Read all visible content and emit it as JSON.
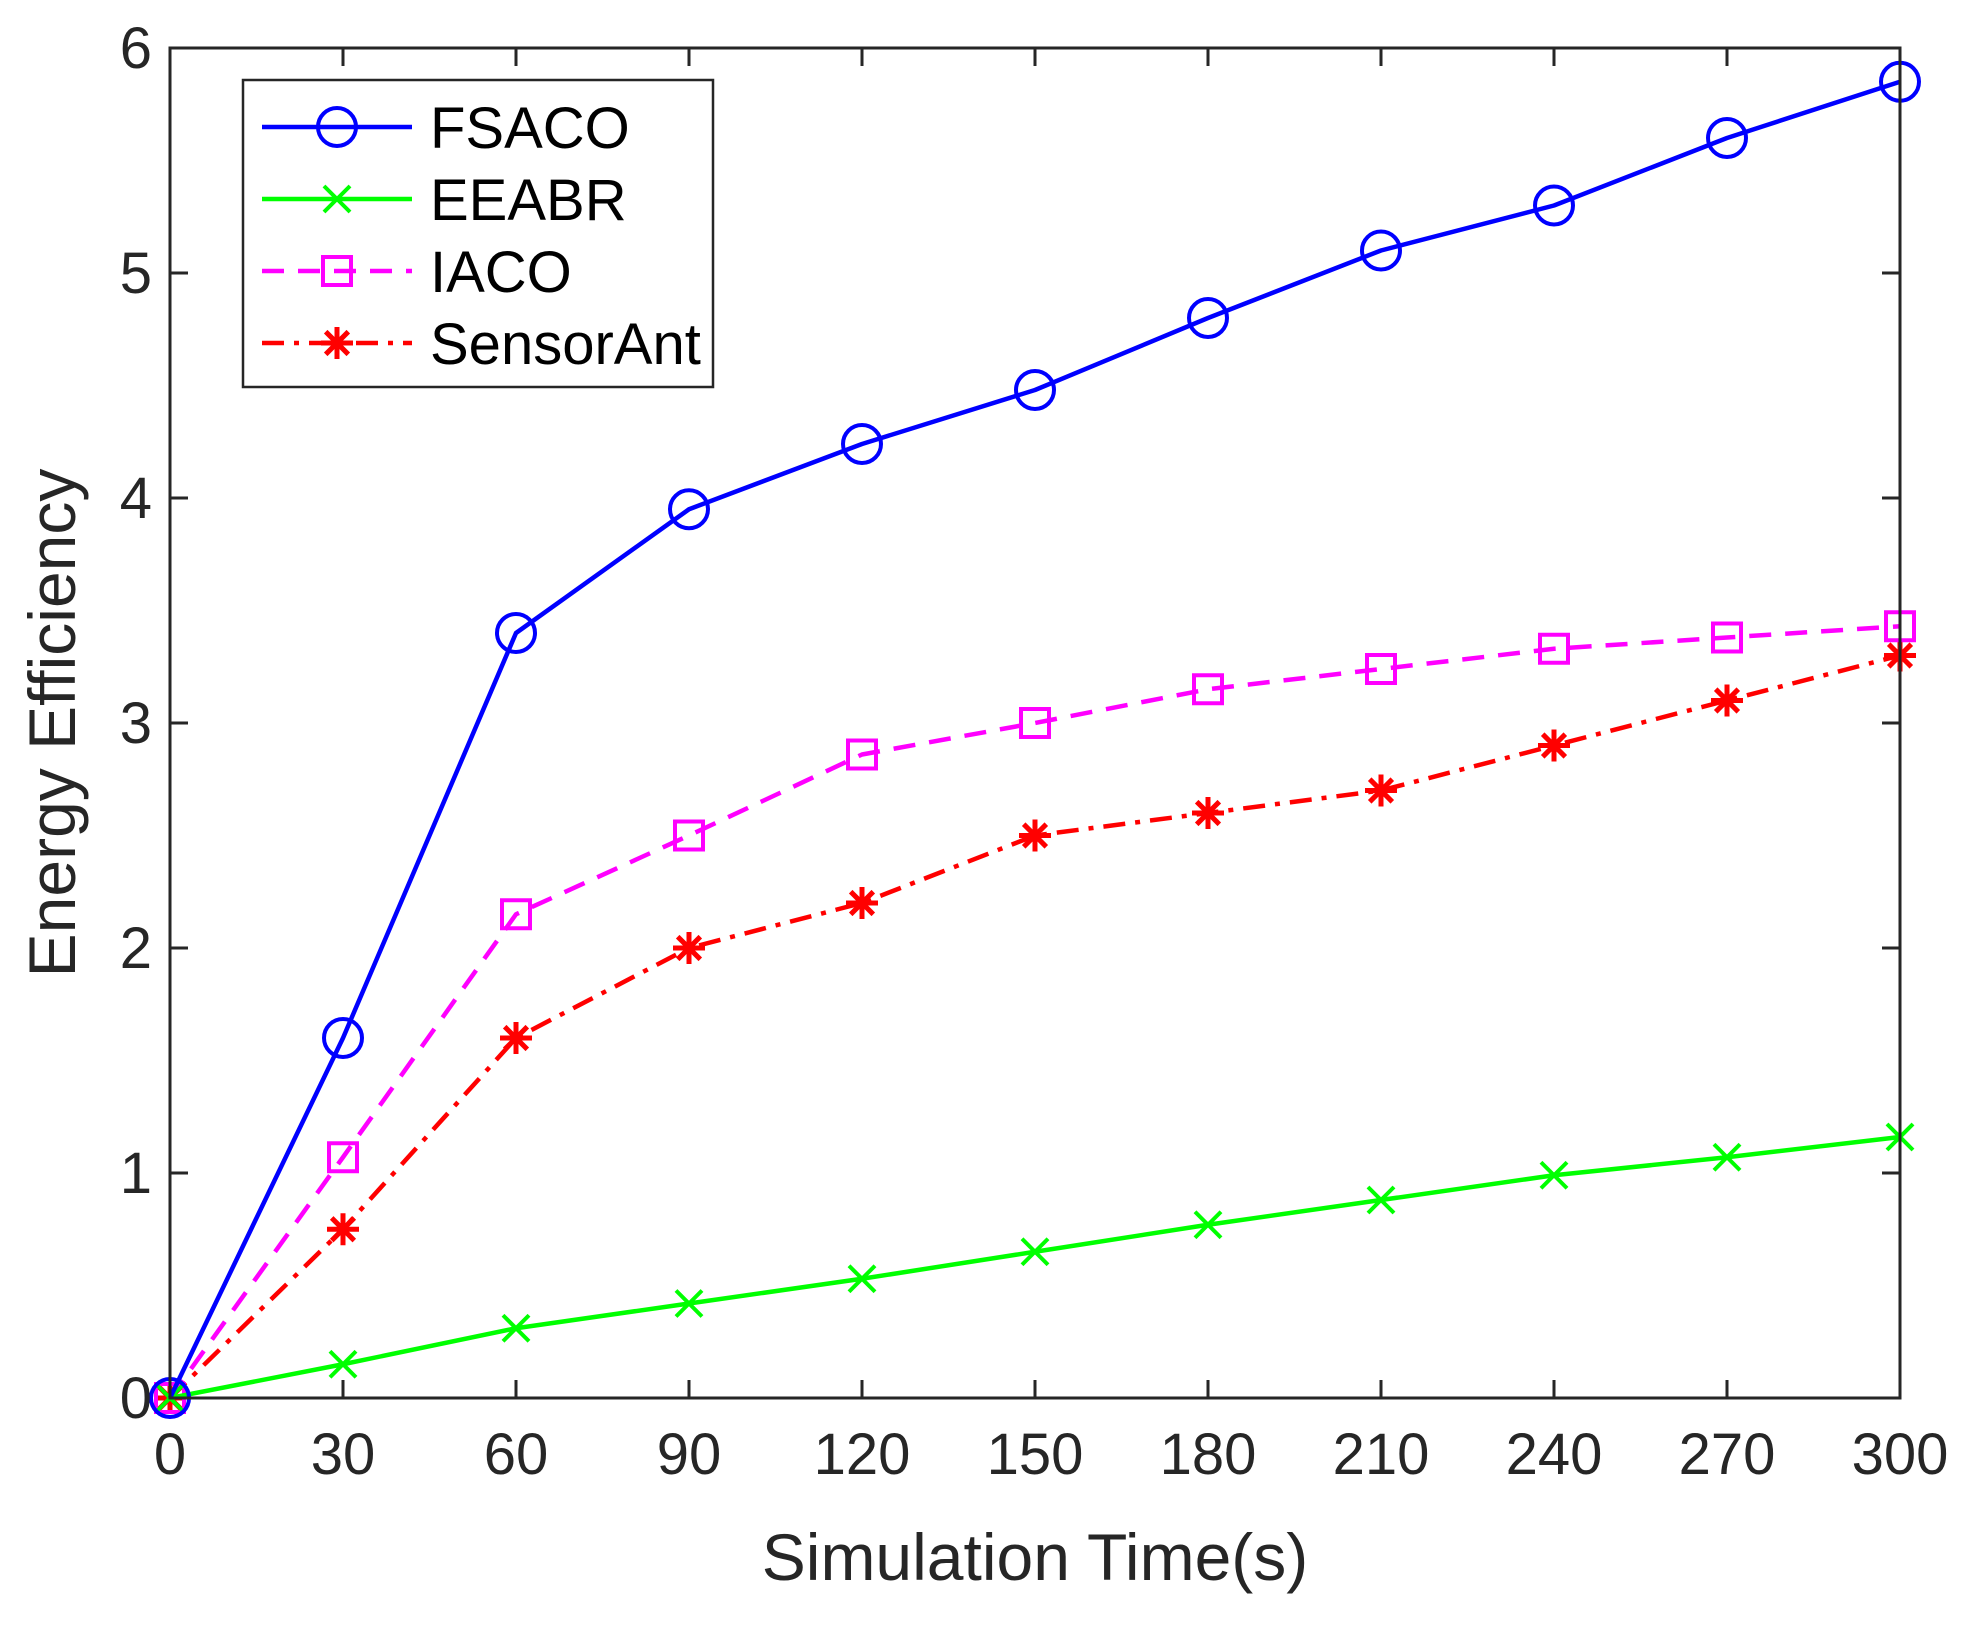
{
  "chart_data": {
    "type": "line",
    "title": "",
    "xlabel": "Simulation Time(s)",
    "ylabel": "Energy Efficiency",
    "x": [
      0,
      30,
      60,
      90,
      120,
      150,
      180,
      210,
      240,
      270,
      300
    ],
    "xticks": [
      "0",
      "30",
      "60",
      "90",
      "120",
      "150",
      "180",
      "210",
      "240",
      "270",
      "300"
    ],
    "yticks": [
      "0",
      "1",
      "2",
      "3",
      "4",
      "5",
      "6"
    ],
    "xlim": [
      0,
      300
    ],
    "ylim": [
      0,
      6
    ],
    "grid": false,
    "legend_position": "top-left",
    "series": [
      {
        "name": "FSACO",
        "color": "#0000ff",
        "marker": "circle",
        "line": "solid",
        "values": [
          0,
          1.6,
          3.4,
          3.95,
          4.24,
          4.48,
          4.8,
          5.1,
          5.3,
          5.6,
          5.85
        ]
      },
      {
        "name": "EEABR",
        "color": "#00ff00",
        "marker": "x",
        "line": "solid",
        "values": [
          0,
          0.15,
          0.31,
          0.42,
          0.53,
          0.65,
          0.77,
          0.88,
          0.99,
          1.07,
          1.16
        ]
      },
      {
        "name": "IACO",
        "color": "#ff00ff",
        "marker": "square",
        "line": "dashed",
        "values": [
          0,
          1.07,
          2.15,
          2.5,
          2.86,
          3.0,
          3.15,
          3.24,
          3.33,
          3.38,
          3.43
        ]
      },
      {
        "name": "SensorAnt",
        "color": "#ff0000",
        "marker": "asterisk",
        "line": "dashdot",
        "values": [
          0,
          0.75,
          1.6,
          2.0,
          2.2,
          2.5,
          2.6,
          2.7,
          2.9,
          3.1,
          3.3
        ]
      }
    ]
  }
}
